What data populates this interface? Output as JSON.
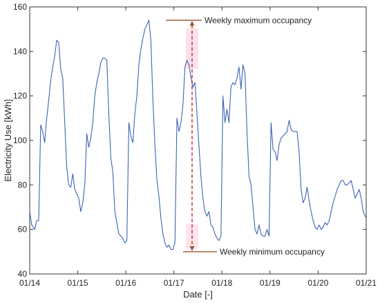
{
  "chart_data": {
    "type": "line",
    "title": "",
    "xlabel": "Date [-]",
    "ylabel": "Electricity Use [kWh]",
    "x_ticks": [
      "01/14",
      "01/15",
      "01/16",
      "01/17",
      "01/18",
      "01/19",
      "01/20",
      "01/21"
    ],
    "y_ticks": [
      "40",
      "60",
      "80",
      "100",
      "120",
      "140",
      "160"
    ],
    "xlim": [
      "01/14 00:00",
      "01/21 00:00"
    ],
    "ylim": [
      40,
      160
    ],
    "grid": false,
    "series": [
      {
        "color": "#3a64b4",
        "x": [
          "01/14 00:00",
          "01/14 01:00",
          "01/14 02:30",
          "01/14 03:30",
          "01/14 04:30",
          "01/14 05:30",
          "01/14 06:30",
          "01/14 07:30",
          "01/14 08:30",
          "01/14 09:30",
          "01/14 10:30",
          "01/14 11:30",
          "01/14 12:30",
          "01/14 13:30",
          "01/14 14:30",
          "01/14 15:30",
          "01/14 16:30",
          "01/14 17:30",
          "01/14 18:30",
          "01/14 19:30",
          "01/14 20:30",
          "01/14 21:30",
          "01/14 22:30",
          "01/14 23:30",
          "01/15 00:30",
          "01/15 01:30",
          "01/15 02:30",
          "01/15 03:30",
          "01/15 04:30",
          "01/15 05:30",
          "01/15 06:30",
          "01/15 07:30",
          "01/15 08:30",
          "01/15 09:30",
          "01/15 10:30",
          "01/15 11:30",
          "01/15 12:30",
          "01/15 13:30",
          "01/15 14:30",
          "01/15 15:30",
          "01/15 16:30",
          "01/15 17:30",
          "01/15 18:30",
          "01/15 19:30",
          "01/15 20:30",
          "01/15 21:30",
          "01/15 22:30",
          "01/15 23:30",
          "01/16 00:30",
          "01/16 01:30",
          "01/16 02:30",
          "01/16 03:30",
          "01/16 04:30",
          "01/16 05:30",
          "01/16 06:30",
          "01/16 07:30",
          "01/16 08:30",
          "01/16 09:30",
          "01/16 10:30",
          "01/16 11:30",
          "01/16 12:30",
          "01/16 13:30",
          "01/16 14:30",
          "01/16 15:30",
          "01/16 16:30",
          "01/16 17:30",
          "01/16 18:30",
          "01/16 19:30",
          "01/16 20:30",
          "01/16 21:30",
          "01/16 22:30",
          "01/16 23:30",
          "01/17 00:30",
          "01/17 01:30",
          "01/17 02:30",
          "01/17 03:30",
          "01/17 04:30",
          "01/17 05:30",
          "01/17 06:30",
          "01/17 07:30",
          "01/17 08:30",
          "01/17 09:30",
          "01/17 10:30",
          "01/17 11:30",
          "01/17 12:30",
          "01/17 13:30",
          "01/17 14:30",
          "01/17 15:30",
          "01/17 16:30",
          "01/17 17:30",
          "01/17 18:30",
          "01/17 19:30",
          "01/17 20:30",
          "01/17 21:30",
          "01/17 22:30",
          "01/17 23:30",
          "01/18 00:30",
          "01/18 01:30",
          "01/18 02:30",
          "01/18 03:30",
          "01/18 04:30",
          "01/18 05:30",
          "01/18 06:30",
          "01/18 07:30",
          "01/18 08:30",
          "01/18 09:30",
          "01/18 10:30",
          "01/18 11:30",
          "01/18 12:30",
          "01/18 13:30",
          "01/18 14:30",
          "01/18 15:30",
          "01/18 16:30",
          "01/18 17:30",
          "01/18 18:30",
          "01/18 19:30",
          "01/18 20:30",
          "01/18 21:30",
          "01/18 22:30",
          "01/18 23:30",
          "01/19 00:30",
          "01/19 01:30",
          "01/19 02:30",
          "01/19 03:30",
          "01/19 04:30",
          "01/19 05:30",
          "01/19 06:30",
          "01/19 07:30",
          "01/19 08:30",
          "01/19 09:30",
          "01/19 10:30",
          "01/19 11:30",
          "01/19 12:30",
          "01/19 13:30",
          "01/19 14:30",
          "01/19 15:30",
          "01/19 16:30",
          "01/19 17:30",
          "01/19 18:30",
          "01/19 19:30",
          "01/19 20:30",
          "01/19 21:30",
          "01/19 22:30",
          "01/19 23:30",
          "01/20 00:30",
          "01/20 01:30",
          "01/20 02:30",
          "01/20 03:30",
          "01/20 04:30",
          "01/20 05:30",
          "01/20 06:30",
          "01/20 07:30",
          "01/20 08:30",
          "01/20 09:30",
          "01/20 10:30",
          "01/20 11:30",
          "01/20 12:30",
          "01/20 13:30",
          "01/20 14:30",
          "01/20 15:30",
          "01/20 16:30",
          "01/20 17:30",
          "01/20 18:30",
          "01/20 19:30",
          "01/20 20:30",
          "01/20 21:30",
          "01/20 22:30",
          "01/20 23:30",
          "01/21 00:00"
        ],
        "y": [
          68,
          62,
          60,
          64,
          64,
          107,
          104,
          99,
          110,
          118,
          127,
          133,
          138,
          145,
          144,
          132,
          128,
          108,
          88,
          80,
          79,
          85,
          78,
          76,
          74,
          68,
          72,
          80,
          103,
          97,
          101,
          108,
          120,
          126,
          130,
          135,
          137,
          137,
          136,
          112,
          92,
          86,
          68,
          63,
          58,
          57,
          56,
          54,
          55,
          108,
          102,
          99,
          112,
          120,
          134,
          141,
          146,
          150,
          152,
          154,
          145,
          118,
          98,
          82,
          75,
          65,
          58,
          54,
          52,
          53,
          51,
          51,
          54,
          110,
          104,
          108,
          116,
          133,
          136,
          134,
          128,
          124,
          126,
          112,
          98,
          84,
          74,
          68,
          66,
          68,
          62,
          61,
          58,
          56,
          55,
          57,
          120,
          108,
          114,
          108,
          124,
          126,
          125,
          128,
          133,
          123,
          134,
          130,
          104,
          84,
          80,
          70,
          60,
          58,
          62,
          58,
          57,
          57,
          60,
          57,
          108,
          96,
          95,
          91,
          98,
          101,
          102,
          103,
          104,
          109,
          105,
          104,
          104,
          104,
          95,
          78,
          72,
          74,
          79,
          73,
          68,
          64,
          61,
          60,
          62,
          60,
          61,
          63,
          62,
          64,
          68,
          72,
          75,
          78,
          80,
          82,
          82,
          80,
          80,
          81,
          82,
          78,
          74,
          76,
          78,
          74,
          68,
          66,
          65
        ]
      }
    ],
    "annotations": [
      {
        "text": "Weekly maximum occupancy",
        "value": 154
      },
      {
        "text": "Weekly minimum occupancy",
        "value": 50
      }
    ],
    "annotation_color": "#a0522d",
    "arrow_color": "#cc2222",
    "highlight_color": "#f8c8d8"
  }
}
